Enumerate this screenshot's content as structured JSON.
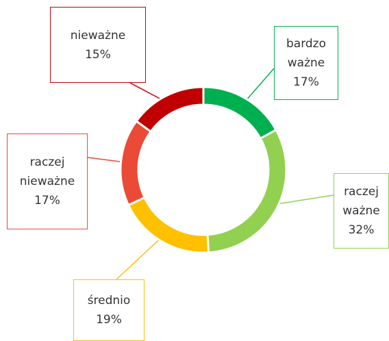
{
  "chart_data": {
    "type": "donut",
    "categories": [
      "bardzo ważne",
      "raczej ważne",
      "średnio",
      "raczej nieważne",
      "nieważne"
    ],
    "values": [
      17,
      32,
      19,
      17,
      15
    ],
    "value_labels": [
      "17%",
      "32%",
      "19%",
      "17%",
      "15%"
    ],
    "colors": [
      "#00b050",
      "#92d050",
      "#ffc000",
      "#ea4a36",
      "#c00000"
    ]
  }
}
